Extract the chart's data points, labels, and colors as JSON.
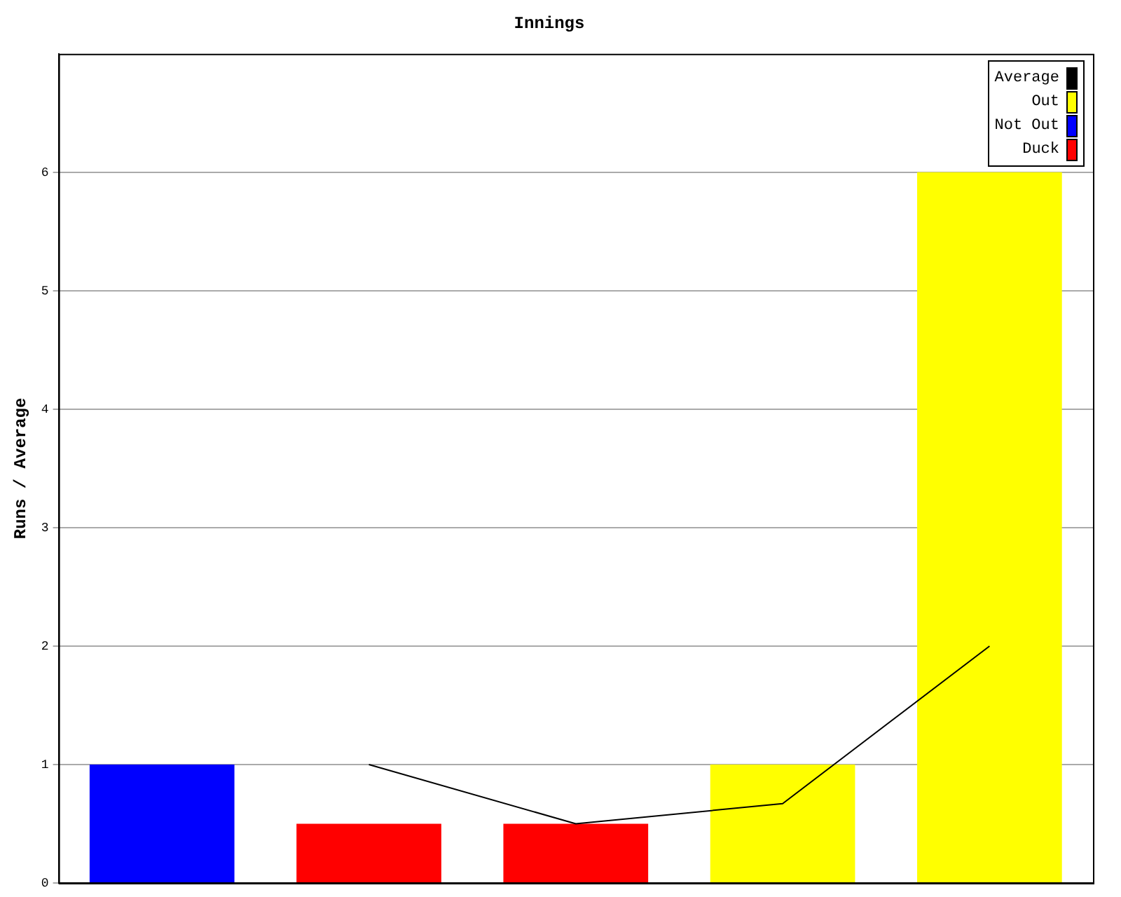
{
  "chart_data": {
    "type": "bar",
    "title": "Innings",
    "ylabel": "Runs / Average",
    "categories": [
      null,
      null,
      null,
      null,
      null
    ],
    "series": [
      {
        "name": "Average",
        "type": "line",
        "color": "#000000",
        "values": [
          null,
          1,
          0.5,
          0.67,
          2
        ]
      },
      {
        "name": "Out",
        "color": "#ffff00",
        "values": [
          null,
          null,
          null,
          1,
          6
        ]
      },
      {
        "name": "Not Out",
        "color": "#0000ff",
        "values": [
          1,
          null,
          null,
          null,
          null
        ]
      },
      {
        "name": "Duck",
        "color": "#ff0000",
        "values": [
          null,
          0.5,
          0.5,
          null,
          null
        ]
      }
    ],
    "stacked": true,
    "ylim": [
      0,
      7
    ],
    "yticks": [
      0,
      1,
      2,
      3,
      4,
      5,
      6
    ],
    "grid": "y",
    "legend": "top right",
    "marker": "none",
    "line_style": "solid",
    "tick_labels": "y"
  }
}
